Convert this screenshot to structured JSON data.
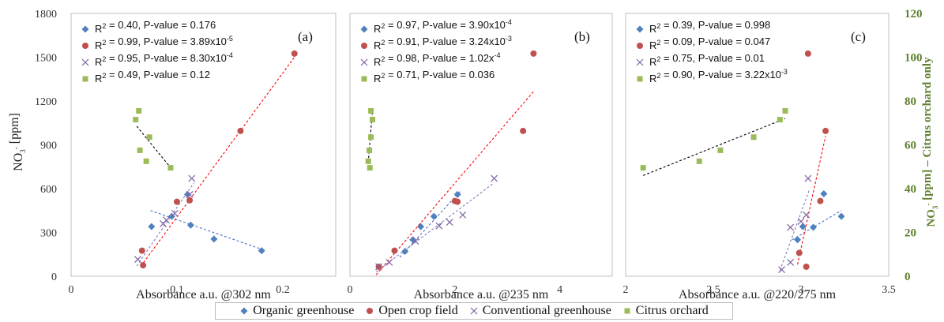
{
  "figure": {
    "y_left_label": "NO3- [ppm]",
    "y_right_label": "NO3- [ppm] – Citrus orchard only",
    "legend": [
      {
        "name": "Organic greenhouse",
        "marker": "diamond",
        "color": "#4f81bd"
      },
      {
        "name": "Open crop field",
        "marker": "circle",
        "color": "#c0504d"
      },
      {
        "name": "Conventional greenhouse",
        "marker": "x",
        "color": "#8064a2"
      },
      {
        "name": "Citrus orchard",
        "marker": "square",
        "color": "#9bbb59"
      }
    ]
  },
  "chart_data": [
    {
      "type": "scatter",
      "panel_label": "(a)",
      "xlabel": "Absorbance a.u. @302 nm",
      "ylabel": "NO3- [ppm]",
      "xlim": [
        0,
        0.25
      ],
      "xticks": [
        "0",
        "0.1",
        "0.2"
      ],
      "xtick_values": [
        0,
        0.1,
        0.2
      ],
      "ylim": [
        0,
        1800
      ],
      "yticks": [
        0,
        300,
        600,
        900,
        1200,
        1500,
        1800
      ],
      "grid": false,
      "stats": [
        {
          "series": "Organic greenhouse",
          "text": "R2 = 0.40, P-value = 0.176"
        },
        {
          "series": "Open crop field",
          "text": "R2 = 0.99, P-value = 3.89x10-5"
        },
        {
          "series": "Conventional greenhouse",
          "text": "R2 = 0.95, P-value = 8.30x10-4"
        },
        {
          "series": "Citrus orchard",
          "text": "R2 = 0.49, P-value = 0.12"
        }
      ],
      "series": [
        {
          "name": "Organic greenhouse",
          "x": [
            0.076,
            0.095,
            0.11,
            0.113,
            0.135,
            0.18
          ],
          "y": [
            340,
            410,
            560,
            350,
            255,
            175
          ],
          "fit": {
            "x": [
              0.075,
              0.18
            ],
            "y": [
              450,
              185
            ]
          }
        },
        {
          "name": "Open crop field",
          "x": [
            0.067,
            0.068,
            0.1,
            0.112,
            0.16,
            0.211
          ],
          "y": [
            175,
            75,
            510,
            520,
            995,
            1525
          ],
          "fit": {
            "x": [
              0.066,
              0.214
            ],
            "y": [
              70,
              1530
            ]
          }
        },
        {
          "name": "Conventional greenhouse",
          "x": [
            0.063,
            0.087,
            0.09,
            0.098,
            0.112,
            0.114
          ],
          "y": [
            115,
            360,
            385,
            430,
            560,
            670
          ],
          "fit": {
            "x": [
              0.062,
              0.116
            ],
            "y": [
              70,
              640
            ]
          }
        },
        {
          "name": "Citrus orchard",
          "axis": "right",
          "x": [
            0.061,
            0.064,
            0.065,
            0.071,
            0.074,
            0.094
          ],
          "y": [
            71.5,
            75.5,
            57.5,
            52.5,
            63.5,
            49.5
          ],
          "fit": {
            "x": [
              0.062,
              0.095
            ],
            "y": [
              68.5,
              49
            ]
          }
        }
      ]
    },
    {
      "type": "scatter",
      "panel_label": "(b)",
      "xlabel": "Absorbance a.u. @235 nm",
      "ylabel": "",
      "xlim": [
        0,
        5
      ],
      "xticks": [
        "0",
        "2",
        "4"
      ],
      "xtick_values": [
        0,
        2,
        4
      ],
      "ylim": [
        0,
        1800
      ],
      "grid": false,
      "stats": [
        {
          "series": "Organic greenhouse",
          "text": "R2 = 0.97, P-value = 3.90x10-4"
        },
        {
          "series": "Open crop field",
          "text": "R2 = 0.91, P-value = 3.24x10-3"
        },
        {
          "series": "Conventional greenhouse",
          "text": "R2 = 0.98, P-value = 1.02x-4"
        },
        {
          "series": "Citrus orchard",
          "text": "R2 = 0.71, P-value = 0.036"
        }
      ],
      "series": [
        {
          "name": "Organic greenhouse",
          "x": [
            1.05,
            1.2,
            1.35,
            1.6,
            2.05
          ],
          "y": [
            170,
            250,
            340,
            410,
            560
          ],
          "fit": {
            "x": [
              0.95,
              2.1
            ],
            "y": [
              130,
              580
            ]
          }
        },
        {
          "name": "Open crop field",
          "x": [
            0.55,
            0.85,
            2.0,
            2.05,
            3.3,
            3.5
          ],
          "y": [
            65,
            175,
            515,
            510,
            995,
            1525
          ],
          "fit": {
            "x": [
              0.5,
              3.5
            ],
            "y": [
              10,
              1265
            ]
          }
        },
        {
          "name": "Conventional greenhouse",
          "x": [
            0.55,
            0.75,
            1.25,
            1.7,
            1.9,
            2.15,
            2.75
          ],
          "y": [
            65,
            95,
            240,
            345,
            370,
            420,
            670
          ],
          "fit": {
            "x": [
              0.5,
              2.75
            ],
            "y": [
              30,
              640
            ]
          }
        },
        {
          "name": "Citrus orchard",
          "axis": "right",
          "x": [
            0.35,
            0.37,
            0.38,
            0.4,
            0.4,
            0.43
          ],
          "y": [
            52.5,
            57.5,
            49.5,
            63.5,
            75.5,
            71.5
          ],
          "fit": {
            "x": [
              0.35,
              0.43
            ],
            "y": [
              52,
              76
            ]
          }
        }
      ]
    },
    {
      "type": "scatter",
      "panel_label": "(c)",
      "xlabel": "Absorbance a.u. @220/275 nm",
      "ylabel": "NO3- [ppm] – Citrus orchard only",
      "xlim": [
        2,
        3.5
      ],
      "xticks": [
        "2",
        "2.5",
        "3",
        "3.5"
      ],
      "xtick_values": [
        2,
        2.5,
        3,
        3.5
      ],
      "ylim_right": [
        0,
        120
      ],
      "yticks_right": [
        0,
        20,
        40,
        60,
        80,
        100,
        120
      ],
      "grid": false,
      "stats": [
        {
          "series": "Organic greenhouse",
          "text": "R2 = 0.39, P-value = 0.998"
        },
        {
          "series": "Open crop field",
          "text": "R2 = 0.09, P-value = 0.047"
        },
        {
          "series": "Conventional greenhouse",
          "text": "R2 = 0.75, P-value = 0.01"
        },
        {
          "series": "Citrus orchard",
          "text": "R2 = 0.90, P-value = 3.22x10-3"
        }
      ],
      "series": [
        {
          "name": "Organic greenhouse",
          "x": [
            2.98,
            3.01,
            3.07,
            3.13,
            3.23
          ],
          "y": [
            250,
            340,
            335,
            565,
            410
          ],
          "fit": {
            "x": [
              2.95,
              3.23
            ],
            "y": [
              250,
              450
            ]
          }
        },
        {
          "name": "Open crop field",
          "x": [
            2.99,
            3.03,
            3.04,
            3.11,
            3.14
          ],
          "y": [
            160,
            65,
            1525,
            515,
            995
          ],
          "fit": {
            "x": [
              2.98,
              3.14
            ],
            "y": [
              80,
              960
            ]
          }
        },
        {
          "name": "Conventional greenhouse",
          "x": [
            2.89,
            2.94,
            2.94,
            3.0,
            3.03,
            3.04
          ],
          "y": [
            45,
            95,
            335,
            375,
            420,
            670
          ],
          "fit": {
            "x": [
              2.88,
              3.05
            ],
            "y": [
              40,
              600
            ]
          }
        },
        {
          "name": "Citrus orchard",
          "axis": "right",
          "x": [
            2.1,
            2.42,
            2.54,
            2.73,
            2.88,
            2.91
          ],
          "y": [
            49.5,
            52.5,
            57.5,
            63.5,
            71.5,
            75.5
          ],
          "fit": {
            "x": [
              2.1,
              2.91
            ],
            "y": [
              46,
              72
            ]
          }
        }
      ]
    }
  ]
}
